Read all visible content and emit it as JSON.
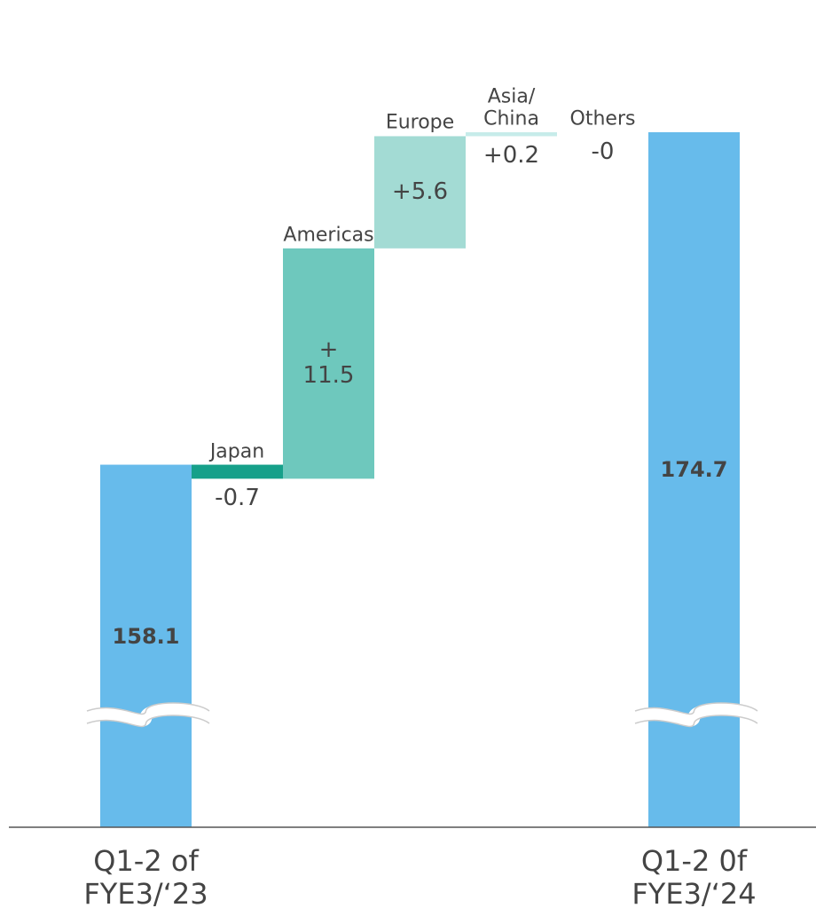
{
  "chart_data": {
    "type": "waterfall",
    "categories": [
      "Q1-2 of\nFYE3/‘23",
      "Japan",
      "Americas",
      "Europe",
      "Asia/\nChina",
      "Others",
      "Q1-2 0f\nFYE3/‘24"
    ],
    "measure": [
      "total",
      "relative",
      "relative",
      "relative",
      "relative",
      "relative",
      "total"
    ],
    "values": [
      158.1,
      -0.7,
      11.5,
      5.6,
      0.2,
      0,
      174.7
    ],
    "value_labels": [
      "158.1",
      "-0.7",
      "+\n11.5",
      "+5.6",
      "+0.2",
      "-0",
      "174.7"
    ],
    "colors": [
      "#67bbeb",
      "#16a08a",
      "#6ec8bd",
      "#a3dbd4",
      "#c7ecea",
      "#ffffff",
      "#67bbeb"
    ],
    "ylim": [
      140,
      181.3
    ],
    "axis_break": true
  }
}
